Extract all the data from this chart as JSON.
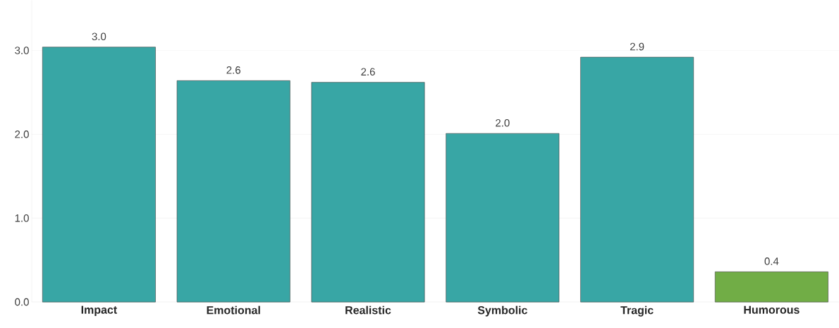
{
  "chart_data": {
    "type": "bar",
    "categories": [
      "Impact",
      "Emotional",
      "Realistic",
      "Symbolic",
      "Tragic",
      "Humorous"
    ],
    "values": [
      3.04,
      2.64,
      2.62,
      2.01,
      2.92,
      0.36
    ],
    "value_labels": [
      "3.0",
      "2.6",
      "2.6",
      "2.0",
      "2.9",
      "0.4"
    ],
    "colors": [
      "#38a6a5",
      "#38a6a5",
      "#38a6a5",
      "#38a6a5",
      "#38a6a5",
      "#71ad46"
    ],
    "ylim": [
      0,
      3.6
    ],
    "yticks": [
      {
        "value": 0,
        "label": "0.0"
      },
      {
        "value": 1,
        "label": "1.0"
      },
      {
        "value": 2,
        "label": "2.0"
      },
      {
        "value": 3,
        "label": "3.0"
      }
    ],
    "grid": "y"
  }
}
